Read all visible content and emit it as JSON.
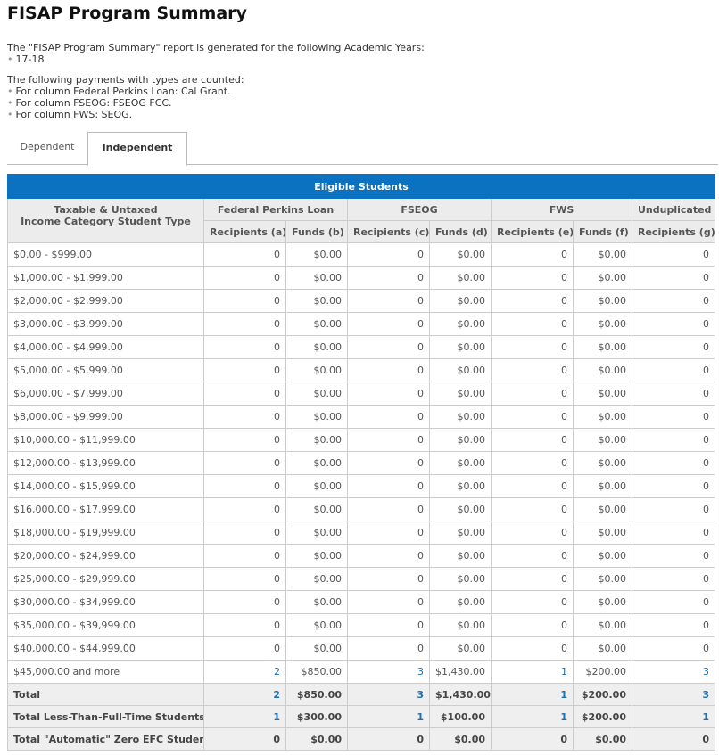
{
  "header": {
    "title": "FISAP Program Summary"
  },
  "intro": {
    "years_text": "The \"FISAP Program Summary\" report is generated for the following Academic Years:",
    "years": [
      "17-18"
    ],
    "payments_text": "The following payments with types are counted:",
    "payments": [
      "For column Federal Perkins Loan: Cal Grant.",
      "For column FSEOG: FSEOG FCC.",
      "For column FWS: SEOG."
    ]
  },
  "tabs": [
    {
      "label": "Dependent",
      "active": false
    },
    {
      "label": "Independent",
      "active": true
    }
  ],
  "table": {
    "banner": "Eligible Students",
    "row_header": [
      "Taxable & Untaxed",
      "Income Category Student Type"
    ],
    "groups": [
      {
        "label": "Federal Perkins Loan",
        "span": 2
      },
      {
        "label": "FSEOG",
        "span": 2
      },
      {
        "label": "FWS",
        "span": 2
      },
      {
        "label": "Unduplicated",
        "span": 1
      }
    ],
    "columns": [
      "Recipients (a)",
      "Funds (b)",
      "Recipients (c)",
      "Funds (d)",
      "Recipients (e)",
      "Funds (f)",
      "Recipients (g)"
    ],
    "rows": [
      {
        "label": "$0.00 - $999.00",
        "cells": [
          "0",
          "$0.00",
          "0",
          "$0.00",
          "0",
          "$0.00",
          "0"
        ]
      },
      {
        "label": "$1,000.00 - $1,999.00",
        "cells": [
          "0",
          "$0.00",
          "0",
          "$0.00",
          "0",
          "$0.00",
          "0"
        ]
      },
      {
        "label": "$2,000.00 - $2,999.00",
        "cells": [
          "0",
          "$0.00",
          "0",
          "$0.00",
          "0",
          "$0.00",
          "0"
        ]
      },
      {
        "label": "$3,000.00 - $3,999.00",
        "cells": [
          "0",
          "$0.00",
          "0",
          "$0.00",
          "0",
          "$0.00",
          "0"
        ]
      },
      {
        "label": "$4,000.00 - $4,999.00",
        "cells": [
          "0",
          "$0.00",
          "0",
          "$0.00",
          "0",
          "$0.00",
          "0"
        ]
      },
      {
        "label": "$5,000.00 - $5,999.00",
        "cells": [
          "0",
          "$0.00",
          "0",
          "$0.00",
          "0",
          "$0.00",
          "0"
        ]
      },
      {
        "label": "$6,000.00 - $7,999.00",
        "cells": [
          "0",
          "$0.00",
          "0",
          "$0.00",
          "0",
          "$0.00",
          "0"
        ]
      },
      {
        "label": "$8,000.00 - $9,999.00",
        "cells": [
          "0",
          "$0.00",
          "0",
          "$0.00",
          "0",
          "$0.00",
          "0"
        ]
      },
      {
        "label": "$10,000.00 - $11,999.00",
        "cells": [
          "0",
          "$0.00",
          "0",
          "$0.00",
          "0",
          "$0.00",
          "0"
        ]
      },
      {
        "label": "$12,000.00 - $13,999.00",
        "cells": [
          "0",
          "$0.00",
          "0",
          "$0.00",
          "0",
          "$0.00",
          "0"
        ]
      },
      {
        "label": "$14,000.00 - $15,999.00",
        "cells": [
          "0",
          "$0.00",
          "0",
          "$0.00",
          "0",
          "$0.00",
          "0"
        ]
      },
      {
        "label": "$16,000.00 - $17,999.00",
        "cells": [
          "0",
          "$0.00",
          "0",
          "$0.00",
          "0",
          "$0.00",
          "0"
        ]
      },
      {
        "label": "$18,000.00 - $19,999.00",
        "cells": [
          "0",
          "$0.00",
          "0",
          "$0.00",
          "0",
          "$0.00",
          "0"
        ]
      },
      {
        "label": "$20,000.00 - $24,999.00",
        "cells": [
          "0",
          "$0.00",
          "0",
          "$0.00",
          "0",
          "$0.00",
          "0"
        ]
      },
      {
        "label": "$25,000.00 - $29,999.00",
        "cells": [
          "0",
          "$0.00",
          "0",
          "$0.00",
          "0",
          "$0.00",
          "0"
        ]
      },
      {
        "label": "$30,000.00 - $34,999.00",
        "cells": [
          "0",
          "$0.00",
          "0",
          "$0.00",
          "0",
          "$0.00",
          "0"
        ]
      },
      {
        "label": "$35,000.00 - $39,999.00",
        "cells": [
          "0",
          "$0.00",
          "0",
          "$0.00",
          "0",
          "$0.00",
          "0"
        ]
      },
      {
        "label": "$40,000.00 - $44,999.00",
        "cells": [
          "0",
          "$0.00",
          "0",
          "$0.00",
          "0",
          "$0.00",
          "0"
        ]
      },
      {
        "label": "$45,000.00 and more",
        "linked": true,
        "cells": [
          "2",
          "$850.00",
          "3",
          "$1,430.00",
          "1",
          "$200.00",
          "3"
        ]
      }
    ],
    "totals": [
      {
        "label": "Total",
        "linked": true,
        "cells": [
          "2",
          "$850.00",
          "3",
          "$1,430.00",
          "1",
          "$200.00",
          "3"
        ]
      },
      {
        "label": "Total Less-Than-Full-Time Students",
        "linked": true,
        "cells": [
          "1",
          "$300.00",
          "1",
          "$100.00",
          "1",
          "$200.00",
          "1"
        ]
      },
      {
        "label": "Total \"Automatic\" Zero EFC Students",
        "linked": false,
        "cells": [
          "0",
          "$0.00",
          "0",
          "$0.00",
          "0",
          "$0.00",
          "0"
        ]
      }
    ]
  }
}
